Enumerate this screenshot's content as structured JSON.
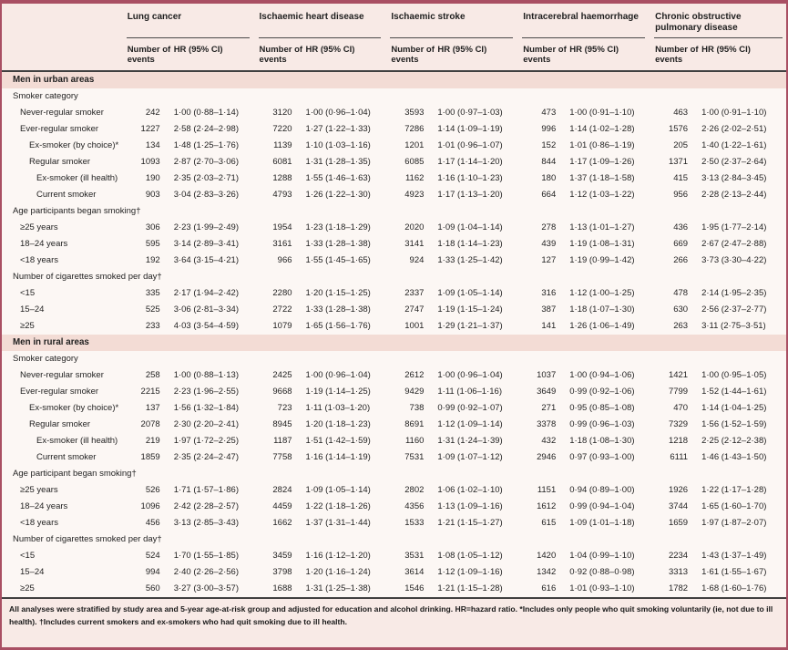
{
  "colors": {
    "border": "#a94f63",
    "header_bg": "#f8eae6",
    "section_band_bg": "#f3dcd5",
    "body_bg": "#fcf7f4",
    "rule_dark": "#404040",
    "text": "#1f1f1f"
  },
  "table": {
    "column_groups": [
      "Lung cancer",
      "Ischaemic heart disease",
      "Ischaemic stroke",
      "Intracerebral haemorrhage",
      "Chronic obstructive pulmonary disease"
    ],
    "subheader_events": "Number of events",
    "subheader_hr": "HR (95% CI)",
    "sections": [
      {
        "title": "Men in urban areas",
        "blocks": [
          {
            "heading": "Smoker category",
            "rows": [
              {
                "label": "Never-regular smoker",
                "indent": 1,
                "values": [
                  "242",
                  "1·00 (0·88–1·14)",
                  "3120",
                  "1·00 (0·96–1·04)",
                  "3593",
                  "1·00 (0·97–1·03)",
                  "473",
                  "1·00 (0·91–1·10)",
                  "463",
                  "1·00 (0·91–1·10)"
                ]
              },
              {
                "label": "Ever-regular smoker",
                "indent": 1,
                "values": [
                  "1227",
                  "2·58 (2·24–2·98)",
                  "7220",
                  "1·27 (1·22–1·33)",
                  "7286",
                  "1·14 (1·09–1·19)",
                  "996",
                  "1·14 (1·02–1·28)",
                  "1576",
                  "2·26 (2·02–2·51)"
                ]
              },
              {
                "label": "Ex-smoker (by choice)*",
                "indent": 2,
                "values": [
                  "134",
                  "1·48 (1·25–1·76)",
                  "1139",
                  "1·10 (1·03–1·16)",
                  "1201",
                  "1·01 (0·96–1·07)",
                  "152",
                  "1·01 (0·86–1·19)",
                  "205",
                  "1·40 (1·22–1·61)"
                ]
              },
              {
                "label": "Regular smoker",
                "indent": 2,
                "values": [
                  "1093",
                  "2·87 (2·70–3·06)",
                  "6081",
                  "1·31 (1·28–1·35)",
                  "6085",
                  "1·17 (1·14–1·20)",
                  "844",
                  "1·17 (1·09–1·26)",
                  "1371",
                  "2·50 (2·37–2·64)"
                ]
              },
              {
                "label": "Ex-smoker (ill health)",
                "indent": 3,
                "values": [
                  "190",
                  "2·35 (2·03–2·71)",
                  "1288",
                  "1·55 (1·46–1·63)",
                  "1162",
                  "1·16 (1·10–1·23)",
                  "180",
                  "1·37 (1·18–1·58)",
                  "415",
                  "3·13 (2·84–3·45)"
                ]
              },
              {
                "label": "Current smoker",
                "indent": 3,
                "values": [
                  "903",
                  "3·04 (2·83–3·26)",
                  "4793",
                  "1·26 (1·22–1·30)",
                  "4923",
                  "1·17 (1·13–1·20)",
                  "664",
                  "1·12 (1·03–1·22)",
                  "956",
                  "2·28 (2·13–2·44)"
                ]
              }
            ]
          },
          {
            "heading": "Age participants began smoking†",
            "rows": [
              {
                "label": "≥25 years",
                "indent": 1,
                "values": [
                  "306",
                  "2·23 (1·99–2·49)",
                  "1954",
                  "1·23 (1·18–1·29)",
                  "2020",
                  "1·09 (1·04–1·14)",
                  "278",
                  "1·13 (1·01–1·27)",
                  "436",
                  "1·95 (1·77–2·14)"
                ]
              },
              {
                "label": "18–24 years",
                "indent": 1,
                "values": [
                  "595",
                  "3·14 (2·89–3·41)",
                  "3161",
                  "1·33 (1·28–1·38)",
                  "3141",
                  "1·18 (1·14–1·23)",
                  "439",
                  "1·19 (1·08–1·31)",
                  "669",
                  "2·67 (2·47–2·88)"
                ]
              },
              {
                "label": "<18 years",
                "indent": 1,
                "values": [
                  "192",
                  "3·64 (3·15–4·21)",
                  "966",
                  "1·55 (1·45–1·65)",
                  "924",
                  "1·33 (1·25–1·42)",
                  "127",
                  "1·19 (0·99–1·42)",
                  "266",
                  "3·73 (3·30–4·22)"
                ]
              }
            ]
          },
          {
            "heading": "Number of cigarettes smoked per day†",
            "rows": [
              {
                "label": "<15",
                "indent": 1,
                "values": [
                  "335",
                  "2·17 (1·94–2·42)",
                  "2280",
                  "1·20 (1·15–1·25)",
                  "2337",
                  "1·09 (1·05–1·14)",
                  "316",
                  "1·12 (1·00–1·25)",
                  "478",
                  "2·14 (1·95–2·35)"
                ]
              },
              {
                "label": "15–24",
                "indent": 1,
                "values": [
                  "525",
                  "3·06 (2·81–3·34)",
                  "2722",
                  "1·33 (1·28–1·38)",
                  "2747",
                  "1·19 (1·15–1·24)",
                  "387",
                  "1·18 (1·07–1·30)",
                  "630",
                  "2·56 (2·37–2·77)"
                ]
              },
              {
                "label": "≥25",
                "indent": 1,
                "values": [
                  "233",
                  "4·03 (3·54–4·59)",
                  "1079",
                  "1·65 (1·56–1·76)",
                  "1001",
                  "1·29 (1·21–1·37)",
                  "141",
                  "1·26 (1·06–1·49)",
                  "263",
                  "3·11 (2·75–3·51)"
                ]
              }
            ]
          }
        ]
      },
      {
        "title": "Men in rural areas",
        "blocks": [
          {
            "heading": "Smoker category",
            "rows": [
              {
                "label": "Never-regular smoker",
                "indent": 1,
                "values": [
                  "258",
                  "1·00 (0·88–1·13)",
                  "2425",
                  "1·00 (0·96–1·04)",
                  "2612",
                  "1·00 (0·96–1·04)",
                  "1037",
                  "1·00 (0·94–1·06)",
                  "1421",
                  "1·00 (0·95–1·05)"
                ]
              },
              {
                "label": "Ever-regular smoker",
                "indent": 1,
                "values": [
                  "2215",
                  "2·23 (1·96–2·55)",
                  "9668",
                  "1·19 (1·14–1·25)",
                  "9429",
                  "1·11 (1·06–1·16)",
                  "3649",
                  "0·99 (0·92–1·06)",
                  "7799",
                  "1·52 (1·44–1·61)"
                ]
              },
              {
                "label": "Ex-smoker (by choice)*",
                "indent": 2,
                "values": [
                  "137",
                  "1·56 (1·32–1·84)",
                  "723",
                  "1·11 (1·03–1·20)",
                  "738",
                  "0·99 (0·92–1·07)",
                  "271",
                  "0·95 (0·85–1·08)",
                  "470",
                  "1·14 (1·04–1·25)"
                ]
              },
              {
                "label": "Regular smoker",
                "indent": 2,
                "values": [
                  "2078",
                  "2·30 (2·20–2·41)",
                  "8945",
                  "1·20 (1·18–1·23)",
                  "8691",
                  "1·12 (1·09–1·14)",
                  "3378",
                  "0·99 (0·96–1·03)",
                  "7329",
                  "1·56 (1·52–1·59)"
                ]
              },
              {
                "label": "Ex-smoker (ill health)",
                "indent": 3,
                "values": [
                  "219",
                  "1·97 (1·72–2·25)",
                  "1187",
                  "1·51 (1·42–1·59)",
                  "1160",
                  "1·31 (1·24–1·39)",
                  "432",
                  "1·18 (1·08–1·30)",
                  "1218",
                  "2·25 (2·12–2·38)"
                ]
              },
              {
                "label": "Current smoker",
                "indent": 3,
                "values": [
                  "1859",
                  "2·35 (2·24–2·47)",
                  "7758",
                  "1·16 (1·14–1·19)",
                  "7531",
                  "1·09 (1·07–1·12)",
                  "2946",
                  "0·97 (0·93–1·00)",
                  "6111",
                  "1·46 (1·43–1·50)"
                ]
              }
            ]
          },
          {
            "heading": "Age participant began smoking†",
            "rows": [
              {
                "label": "≥25 years",
                "indent": 1,
                "values": [
                  "526",
                  "1·71 (1·57–1·86)",
                  "2824",
                  "1·09 (1·05–1·14)",
                  "2802",
                  "1·06 (1·02–1·10)",
                  "1151",
                  "0·94 (0·89–1·00)",
                  "1926",
                  "1·22 (1·17–1·28)"
                ]
              },
              {
                "label": "18–24 years",
                "indent": 1,
                "values": [
                  "1096",
                  "2·42 (2·28–2·57)",
                  "4459",
                  "1·22 (1·18–1·26)",
                  "4356",
                  "1·13 (1·09–1·16)",
                  "1612",
                  "0·99 (0·94–1·04)",
                  "3744",
                  "1·65 (1·60–1·70)"
                ]
              },
              {
                "label": "<18 years",
                "indent": 1,
                "values": [
                  "456",
                  "3·13 (2·85–3·43)",
                  "1662",
                  "1·37 (1·31–1·44)",
                  "1533",
                  "1·21 (1·15–1·27)",
                  "615",
                  "1·09 (1·01–1·18)",
                  "1659",
                  "1·97 (1·87–2·07)"
                ]
              }
            ]
          },
          {
            "heading": "Number of cigarettes smoked per day†",
            "rows": [
              {
                "label": "<15",
                "indent": 1,
                "values": [
                  "524",
                  "1·70 (1·55–1·85)",
                  "3459",
                  "1·16 (1·12–1·20)",
                  "3531",
                  "1·08 (1·05–1·12)",
                  "1420",
                  "1·04 (0·99–1·10)",
                  "2234",
                  "1·43 (1·37–1·49)"
                ]
              },
              {
                "label": "15–24",
                "indent": 1,
                "values": [
                  "994",
                  "2·40 (2·26–2·56)",
                  "3798",
                  "1·20 (1·16–1·24)",
                  "3614",
                  "1·12 (1·09–1·16)",
                  "1342",
                  "0·92 (0·88–0·98)",
                  "3313",
                  "1·61 (1·55–1·67)"
                ]
              },
              {
                "label": "≥25",
                "indent": 1,
                "values": [
                  "560",
                  "3·27 (3·00–3·57)",
                  "1688",
                  "1·31 (1·25–1·38)",
                  "1546",
                  "1·21 (1·15–1·28)",
                  "616",
                  "1·01 (0·93–1·10)",
                  "1782",
                  "1·68 (1·60–1·76)"
                ]
              }
            ]
          }
        ]
      }
    ]
  },
  "footnote": "All analyses were stratified by study area and 5-year age-at-risk group and adjusted for education and alcohol drinking. HR=hazard ratio. *Includes only people who quit smoking voluntarily (ie, not due to ill health). †Includes current smokers and ex-smokers who had quit smoking due to ill health."
}
